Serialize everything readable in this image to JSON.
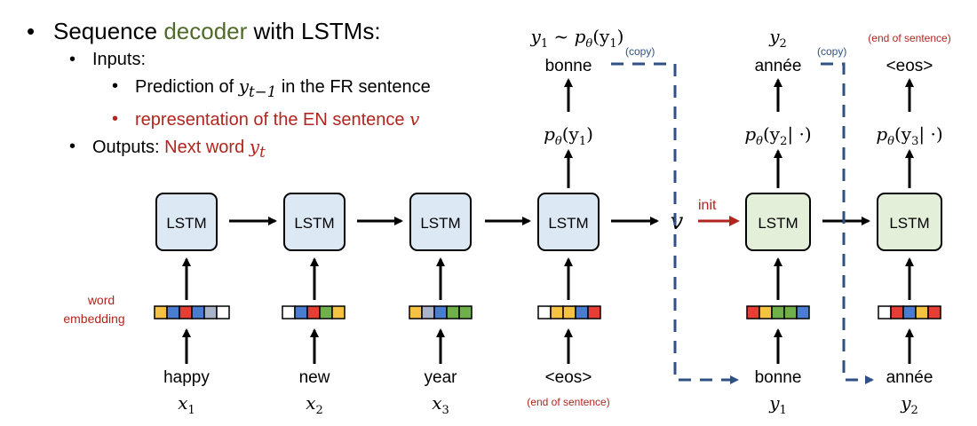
{
  "bullets": {
    "title_pre": "Sequence ",
    "title_highlight": "decoder",
    "title_post": " with LSTMs:",
    "inputs_label": "Inputs:",
    "input_1_pre": "Prediction of ",
    "input_1_math": "y",
    "input_1_sub": "t−1",
    "input_1_post": " in the FR sentence",
    "input_2_pre": "representation of the EN sentence ",
    "input_2_math": "v",
    "outputs_label": "Outputs: ",
    "outputs_highlight": "Next word ",
    "outputs_math": "y",
    "outputs_sub": "t"
  },
  "diagram": {
    "lstm_label": "LSTM",
    "v_symbol": "v",
    "init_label": "init",
    "copy_label": "(copy)",
    "eos_note": "(end of sentence)",
    "embedding_label_1": "word",
    "embedding_label_2": "embedding",
    "encoder_inputs": [
      {
        "word": "happy",
        "var": "x",
        "sub": "1"
      },
      {
        "word": "new",
        "var": "x",
        "sub": "2"
      },
      {
        "word": "year",
        "var": "x",
        "sub": "3"
      },
      {
        "word": "<eos>",
        "note": "(end of sentence)"
      }
    ],
    "decoder_inputs": [
      {
        "word": "bonne",
        "var": "y",
        "sub": "1"
      },
      {
        "word": "année",
        "var": "y",
        "sub": "2"
      }
    ],
    "outputs": [
      {
        "prob": "p",
        "prob_sub": "θ",
        "prob_arg": "(y",
        "prob_arg_sub": "1",
        "prob_close": ")",
        "word": "bonne",
        "top_a": "y",
        "top_a_sub": "1",
        "top_b": " ~ p",
        "top_b_sub": "θ",
        "top_c": "(y",
        "top_c_sub": "1",
        "top_d": ")"
      },
      {
        "prob": "p",
        "prob_sub": "θ",
        "prob_arg": "(y",
        "prob_arg_sub": "2",
        "prob_close": "| ·)",
        "word": "année",
        "top_a": "y",
        "top_a_sub": "2"
      },
      {
        "prob": "p",
        "prob_sub": "θ",
        "prob_arg": "(y",
        "prob_arg_sub": "3",
        "prob_close": "| ·)",
        "word": "<eos>",
        "top_note": "(end of sentence)"
      }
    ],
    "embeddings": [
      [
        "#f5c242",
        "#4a7ccf",
        "#e53f35",
        "#4a7ccf",
        "#aab4c8",
        "#ffffff"
      ],
      [
        "#ffffff",
        "#4a7ccf",
        "#e53f35",
        "#6fb04a",
        "#f5c242"
      ],
      [
        "#f5c242",
        "#aab4c8",
        "#4a7ccf",
        "#6fb04a",
        "#6fb04a"
      ],
      [
        "#ffffff",
        "#f5c242",
        "#f5c242",
        "#4a7ccf",
        "#e53f35"
      ],
      [
        "#e53f35",
        "#f5c242",
        "#6fb04a",
        "#6fb04a",
        "#4a7ccf"
      ],
      [
        "#ffffff",
        "#e53f35",
        "#4a7ccf",
        "#f5c242",
        "#e53f35"
      ]
    ],
    "colors": {
      "encoder_fill": "#dde8f5",
      "decoder_fill": "#e3efd9",
      "dashed": "#2f5082",
      "red": "#b0261f",
      "copy_text": "#2f5082"
    }
  }
}
